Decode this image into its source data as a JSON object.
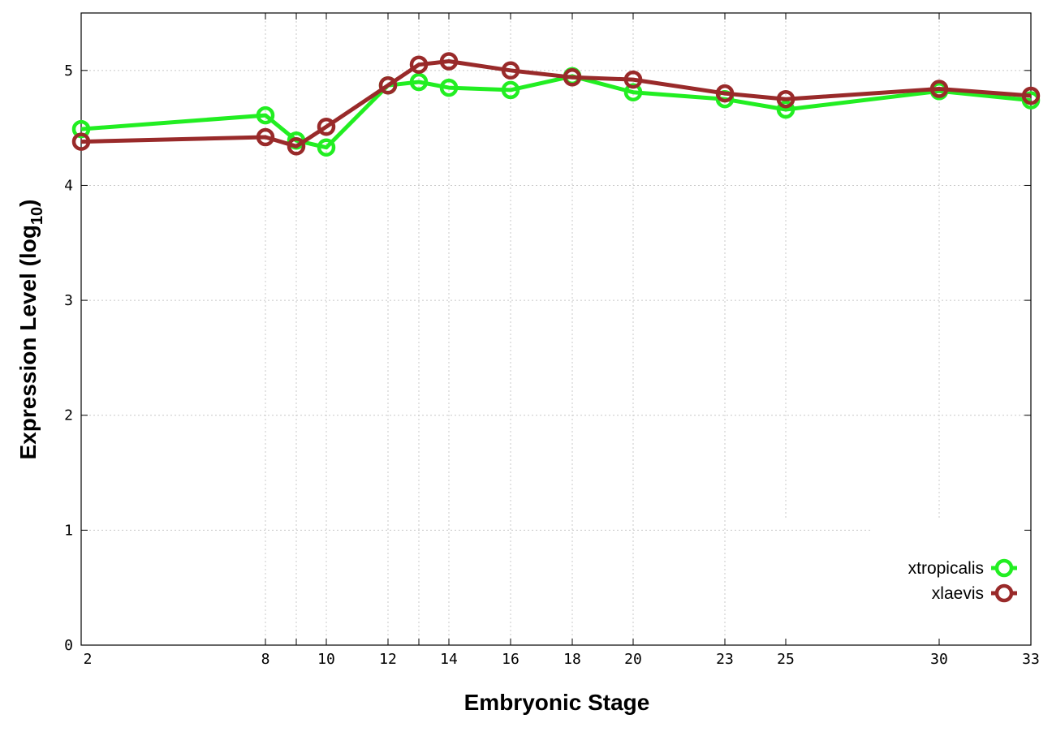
{
  "chart_data": {
    "type": "line",
    "xlabel": "Embryonic Stage",
    "ylabel_main": "Expression Level (log",
    "ylabel_sub": "10",
    "ylabel_close": ")",
    "x_scale": "ordinal-positioned",
    "x_ticks": [
      2,
      8,
      9,
      10,
      12,
      13,
      14,
      16,
      18,
      20,
      23,
      25,
      30,
      33
    ],
    "x_tick_labels": [
      "2",
      "8",
      "10",
      "12",
      "14",
      "16",
      "18",
      "20",
      "23",
      "25",
      "30",
      "33"
    ],
    "x_tick_values": [
      2,
      8,
      10,
      12,
      14,
      16,
      18,
      20,
      23,
      25,
      30,
      33
    ],
    "ylim": [
      0,
      5.5
    ],
    "y_ticks": [
      "0",
      "1",
      "2",
      "3",
      "4",
      "5"
    ],
    "y_tick_values": [
      0,
      1,
      2,
      3,
      4,
      5
    ],
    "grid": true,
    "legend_position": "bottom-right",
    "series": [
      {
        "name": "xtropicalis",
        "color": "#22ee22",
        "x": [
          2,
          8,
          9,
          10,
          12,
          13,
          14,
          16,
          18,
          20,
          23,
          25,
          30,
          33
        ],
        "values": [
          4.49,
          4.61,
          4.39,
          4.33,
          4.87,
          4.9,
          4.85,
          4.83,
          4.95,
          4.81,
          4.75,
          4.66,
          4.82,
          4.74
        ]
      },
      {
        "name": "xlaevis",
        "color": "#992a2a",
        "x": [
          2,
          8,
          9,
          10,
          12,
          13,
          14,
          16,
          18,
          20,
          23,
          25,
          30,
          33
        ],
        "values": [
          4.38,
          4.42,
          4.34,
          4.51,
          4.87,
          5.05,
          5.08,
          5.0,
          4.94,
          4.92,
          4.8,
          4.75,
          4.84,
          4.78
        ]
      }
    ]
  }
}
